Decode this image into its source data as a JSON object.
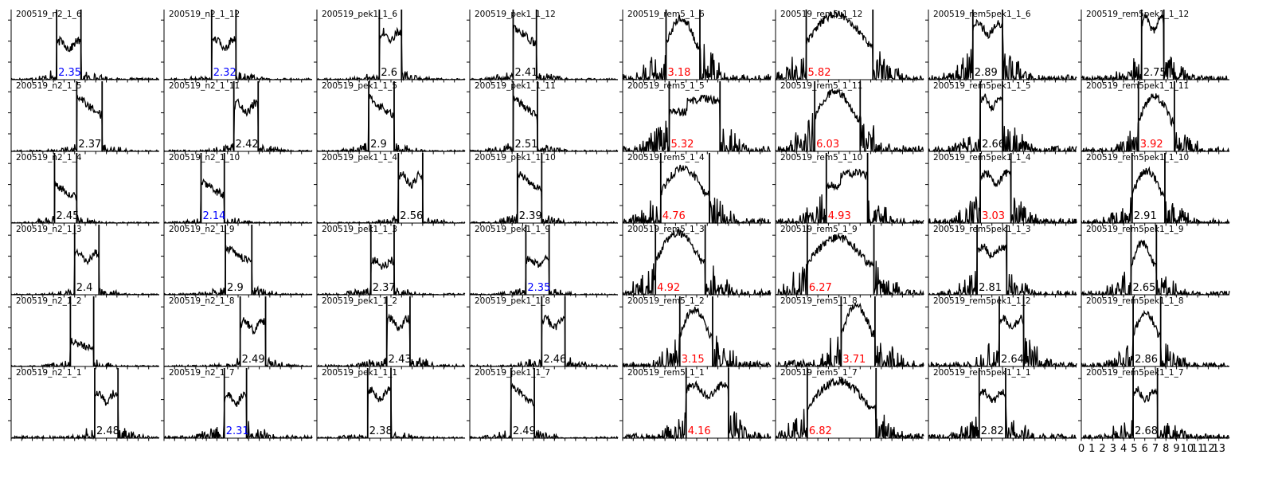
{
  "chart_data": {
    "type": "line",
    "layout": {
      "rows": 6,
      "cols": 8
    },
    "xlim": [
      0,
      14
    ],
    "ylim": [
      0,
      1
    ],
    "x_tick_labels": [
      "0",
      "1",
      "2",
      "3",
      "4",
      "5",
      "6",
      "7",
      "8",
      "9",
      "10",
      "11",
      "12",
      "13"
    ],
    "colors": {
      "line": "#000000",
      "normal": "#000000",
      "low": "#0000ff",
      "high": "#ff0000"
    },
    "panels": [
      {
        "title": "200519_n2_1_6",
        "value": "2.35",
        "status": "low",
        "lo": 4.3,
        "hi": 6.6,
        "h": 0.58,
        "shape": "flat",
        "noise": 0.12
      },
      {
        "title": "200519_n2_1_12",
        "value": "2.32",
        "status": "low",
        "lo": 4.5,
        "hi": 6.8,
        "h": 0.6,
        "shape": "flat",
        "noise": 0.1
      },
      {
        "title": "200519_pek1_1_6",
        "value": "2.6",
        "status": "normal",
        "lo": 5.9,
        "hi": 8.0,
        "h": 0.72,
        "shape": "flat",
        "noise": 0.1
      },
      {
        "title": "200519_pek1_1_12",
        "value": "2.41",
        "status": "normal",
        "lo": 4.1,
        "hi": 6.3,
        "h": 0.8,
        "shape": "decay",
        "noise": 0.1
      },
      {
        "title": "200519_rem5_1_6",
        "value": "3.18",
        "status": "high",
        "lo": 4.1,
        "hi": 7.3,
        "h": 0.92,
        "shape": "hump",
        "noise": 0.45
      },
      {
        "title": "200519_rem5_1_12",
        "value": "5.82",
        "status": "high",
        "lo": 2.9,
        "hi": 9.2,
        "h": 0.98,
        "shape": "hump",
        "noise": 0.4
      },
      {
        "title": "200519_rem5pek1_1_6",
        "value": "2.89",
        "status": "normal",
        "lo": 4.2,
        "hi": 7.0,
        "h": 0.85,
        "shape": "flat",
        "noise": 0.35
      },
      {
        "title": "200519_rem5pek1_1_12",
        "value": "2.75",
        "status": "normal",
        "lo": 5.7,
        "hi": 7.8,
        "h": 0.92,
        "shape": "flat",
        "noise": 0.3
      },
      {
        "title": "200519_n2_1_5",
        "value": "2.37",
        "status": "normal",
        "lo": 6.2,
        "hi": 8.6,
        "h": 0.82,
        "shape": "decay",
        "noise": 0.1
      },
      {
        "title": "200519_n2_1_11",
        "value": "2.42",
        "status": "normal",
        "lo": 6.6,
        "hi": 8.9,
        "h": 0.72,
        "shape": "flat",
        "noise": 0.1
      },
      {
        "title": "200519_pek1_1_5",
        "value": "2.9",
        "status": "normal",
        "lo": 4.9,
        "hi": 7.3,
        "h": 0.8,
        "shape": "decay",
        "noise": 0.1
      },
      {
        "title": "200519_pek1_1_11",
        "value": "2.51",
        "status": "normal",
        "lo": 4.1,
        "hi": 6.4,
        "h": 0.8,
        "shape": "decay",
        "noise": 0.1
      },
      {
        "title": "200519_rem5_1_5",
        "value": "5.32",
        "status": "high",
        "lo": 4.4,
        "hi": 9.2,
        "h": 0.86,
        "shape": "double",
        "noise": 0.45
      },
      {
        "title": "200519_rem5_1_11",
        "value": "6.03",
        "status": "high",
        "lo": 3.7,
        "hi": 8.0,
        "h": 0.9,
        "shape": "hump",
        "noise": 0.45
      },
      {
        "title": "200519_rem5pek1_1_5",
        "value": "2.66",
        "status": "normal",
        "lo": 4.9,
        "hi": 7.0,
        "h": 0.82,
        "shape": "flat",
        "noise": 0.4
      },
      {
        "title": "200519_rem5pek1_1_11",
        "value": "3.92",
        "status": "high",
        "lo": 5.4,
        "hi": 8.8,
        "h": 0.82,
        "shape": "hump",
        "noise": 0.3
      },
      {
        "title": "200519_n2_1_4",
        "value": "2.45",
        "status": "normal",
        "lo": 4.1,
        "hi": 6.2,
        "h": 0.58,
        "shape": "decay",
        "noise": 0.08
      },
      {
        "title": "200519_n2_1_10",
        "value": "2.14",
        "status": "low",
        "lo": 3.5,
        "hi": 5.7,
        "h": 0.62,
        "shape": "decay",
        "noise": 0.08
      },
      {
        "title": "200519_pek1_1_4",
        "value": "2.56",
        "status": "normal",
        "lo": 7.7,
        "hi": 10.0,
        "h": 0.72,
        "shape": "flat",
        "noise": 0.08
      },
      {
        "title": "200519_pek1_1_10",
        "value": "2.39",
        "status": "normal",
        "lo": 4.5,
        "hi": 6.8,
        "h": 0.75,
        "shape": "decay",
        "noise": 0.1
      },
      {
        "title": "200519_rem5_1_4",
        "value": "4.76",
        "status": "high",
        "lo": 3.6,
        "hi": 8.2,
        "h": 0.82,
        "shape": "hump",
        "noise": 0.35
      },
      {
        "title": "200519_rem5_1_10",
        "value": "4.93",
        "status": "high",
        "lo": 4.8,
        "hi": 8.7,
        "h": 0.82,
        "shape": "double",
        "noise": 0.35
      },
      {
        "title": "200519_rem5pek1_1_4",
        "value": "3.03",
        "status": "high",
        "lo": 4.9,
        "hi": 7.8,
        "h": 0.75,
        "shape": "flat",
        "noise": 0.35
      },
      {
        "title": "200519_rem5pek1_1_10",
        "value": "2.91",
        "status": "normal",
        "lo": 4.8,
        "hi": 7.9,
        "h": 0.78,
        "shape": "hump",
        "noise": 0.3
      },
      {
        "title": "200519_n2_1_3",
        "value": "2.4",
        "status": "normal",
        "lo": 6.0,
        "hi": 8.3,
        "h": 0.62,
        "shape": "flat",
        "noise": 0.08
      },
      {
        "title": "200519_n2_1_9",
        "value": "2.9",
        "status": "normal",
        "lo": 5.8,
        "hi": 8.3,
        "h": 0.72,
        "shape": "decay",
        "noise": 0.1
      },
      {
        "title": "200519_pek1_1_3",
        "value": "2.37",
        "status": "normal",
        "lo": 5.1,
        "hi": 7.3,
        "h": 0.52,
        "shape": "flat",
        "noise": 0.1
      },
      {
        "title": "200519_pek1_1_9",
        "value": "2.35",
        "status": "low",
        "lo": 5.3,
        "hi": 7.5,
        "h": 0.55,
        "shape": "flat",
        "noise": 0.08
      },
      {
        "title": "200519_rem5_1_3",
        "value": "4.92",
        "status": "high",
        "lo": 3.1,
        "hi": 7.8,
        "h": 0.92,
        "shape": "hump",
        "noise": 0.4
      },
      {
        "title": "200519_rem5_1_9",
        "value": "6.27",
        "status": "high",
        "lo": 3.0,
        "hi": 9.3,
        "h": 0.85,
        "shape": "hump",
        "noise": 0.4
      },
      {
        "title": "200519_rem5pek1_1_3",
        "value": "2.81",
        "status": "normal",
        "lo": 4.6,
        "hi": 7.4,
        "h": 0.72,
        "shape": "flat",
        "noise": 0.3
      },
      {
        "title": "200519_rem5pek1_1_9",
        "value": "2.65",
        "status": "normal",
        "lo": 4.7,
        "hi": 7.1,
        "h": 0.78,
        "shape": "hump",
        "noise": 0.3
      },
      {
        "title": "200519_n2_1_2",
        "value": "",
        "status": "normal",
        "lo": 5.6,
        "hi": 7.8,
        "h": 0.38,
        "shape": "decay",
        "noise": 0.08
      },
      {
        "title": "200519_n2_1_8",
        "value": "2.49",
        "status": "normal",
        "lo": 7.2,
        "hi": 9.6,
        "h": 0.68,
        "shape": "flat",
        "noise": 0.1
      },
      {
        "title": "200519_pek1_1_2",
        "value": "2.43",
        "status": "normal",
        "lo": 6.6,
        "hi": 8.8,
        "h": 0.72,
        "shape": "flat",
        "noise": 0.15
      },
      {
        "title": "200519_pek1_1_8",
        "value": "2.46",
        "status": "normal",
        "lo": 6.8,
        "hi": 9.0,
        "h": 0.72,
        "shape": "flat",
        "noise": 0.12
      },
      {
        "title": "200519_rem5_1_2",
        "value": "3.15",
        "status": "high",
        "lo": 5.4,
        "hi": 8.5,
        "h": 0.85,
        "shape": "hump",
        "noise": 0.4
      },
      {
        "title": "200519_rem5_1_8",
        "value": "3.71",
        "status": "high",
        "lo": 6.2,
        "hi": 9.4,
        "h": 0.9,
        "shape": "hump",
        "noise": 0.45
      },
      {
        "title": "200519_rem5pek1_1_2",
        "value": "2.64",
        "status": "normal",
        "lo": 6.7,
        "hi": 9.0,
        "h": 0.72,
        "shape": "flat",
        "noise": 0.35
      },
      {
        "title": "200519_rem5pek1_1_8",
        "value": "2.86",
        "status": "normal",
        "lo": 4.9,
        "hi": 7.5,
        "h": 0.82,
        "shape": "hump",
        "noise": 0.3
      },
      {
        "title": "200519_n2_1_1",
        "value": "2.48",
        "status": "normal",
        "lo": 7.9,
        "hi": 10.1,
        "h": 0.68,
        "shape": "flat",
        "noise": 0.15
      },
      {
        "title": "200519_n2_1_7",
        "value": "2.31",
        "status": "low",
        "lo": 5.7,
        "hi": 7.8,
        "h": 0.65,
        "shape": "flat",
        "noise": 0.2
      },
      {
        "title": "200519_pek1_1_1",
        "value": "2.38",
        "status": "normal",
        "lo": 4.8,
        "hi": 7.0,
        "h": 0.72,
        "shape": "flat",
        "noise": 0.1
      },
      {
        "title": "200519_pek1_1_7",
        "value": "2.49",
        "status": "normal",
        "lo": 3.9,
        "hi": 6.1,
        "h": 0.78,
        "shape": "decay",
        "noise": 0.1
      },
      {
        "title": "200519_rem5_1_1",
        "value": "4.16",
        "status": "high",
        "lo": 6.0,
        "hi": 10.0,
        "h": 0.8,
        "shape": "flat",
        "noise": 0.35
      },
      {
        "title": "200519_rem5_1_7",
        "value": "6.82",
        "status": "high",
        "lo": 3.0,
        "hi": 9.5,
        "h": 0.85,
        "shape": "hump",
        "noise": 0.35
      },
      {
        "title": "200519_rem5pek1_1_1",
        "value": "2.82",
        "status": "normal",
        "lo": 4.8,
        "hi": 7.3,
        "h": 0.7,
        "shape": "flat",
        "noise": 0.3
      },
      {
        "title": "200519_rem5pek1_1_7",
        "value": "2.68",
        "status": "normal",
        "lo": 4.9,
        "hi": 7.2,
        "h": 0.72,
        "shape": "flat",
        "noise": 0.3
      }
    ]
  }
}
